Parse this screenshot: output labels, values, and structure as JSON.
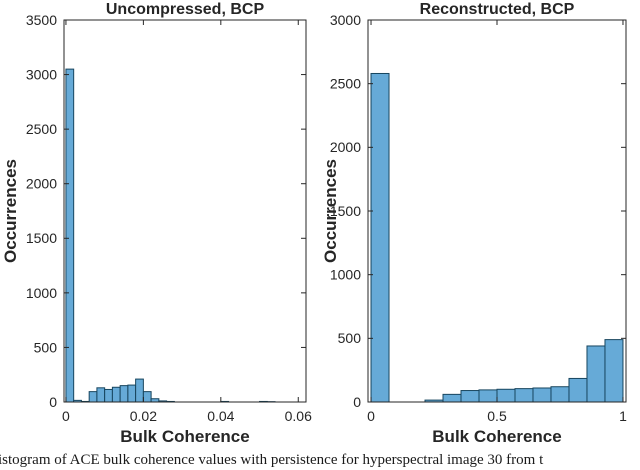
{
  "figure": {
    "caption": "istogram of ACE bulk coherence values with persistence for hyperspectral image 30 from t"
  },
  "colors": {
    "bar_fill": "#66AAD7",
    "bar_edge": "#17455E",
    "axis": "#262626",
    "text": "#262626"
  },
  "chart_data": [
    {
      "type": "bar",
      "title": "Uncompressed, BCP",
      "xlabel": "Bulk Coherence",
      "ylabel": "Occurrences",
      "xlim": [
        -0.0005,
        0.062
      ],
      "ylim": [
        0,
        3500
      ],
      "grid": false,
      "legend": "none",
      "xticks": [
        0,
        0.02,
        0.04,
        0.06
      ],
      "xtick_labels": [
        "0",
        "0.02",
        "0.04",
        "0.06"
      ],
      "yticks": [
        0,
        500,
        1000,
        1500,
        2000,
        2500,
        3000,
        3500
      ],
      "ytick_labels": [
        "0",
        "500",
        "1000",
        "1500",
        "2000",
        "2500",
        "3000",
        "3500"
      ],
      "bin_start": 0,
      "bin_width": 0.002,
      "values": [
        3050,
        15,
        5,
        95,
        130,
        115,
        135,
        150,
        155,
        210,
        95,
        30,
        10,
        5,
        0,
        0,
        0,
        0,
        0,
        0,
        5,
        0,
        0,
        0,
        0,
        5,
        3,
        0,
        0,
        0
      ]
    },
    {
      "type": "bar",
      "title": "Reconstructed, BCP",
      "xlabel": "Bulk Coherence",
      "ylabel": "Occurrences",
      "xlim": [
        -0.012,
        1.012
      ],
      "ylim": [
        0,
        3000
      ],
      "grid": false,
      "legend": "none",
      "xticks": [
        0,
        0.5,
        1
      ],
      "xtick_labels": [
        "0",
        "0.5",
        "1"
      ],
      "yticks": [
        0,
        500,
        1000,
        1500,
        2000,
        2500,
        3000
      ],
      "ytick_labels": [
        "0",
        "500",
        "1000",
        "1500",
        "2000",
        "2500",
        "3000"
      ],
      "bin_start": 0,
      "bin_width": 0.0714286,
      "values": [
        2580,
        0,
        0,
        15,
        60,
        90,
        95,
        100,
        105,
        110,
        120,
        185,
        440,
        490
      ]
    }
  ]
}
